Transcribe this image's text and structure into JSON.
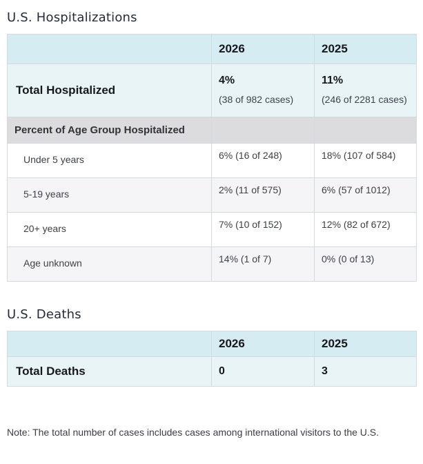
{
  "hospitalizations": {
    "title": "U.S. Hospitalizations",
    "columns": [
      "2026",
      "2025"
    ],
    "total": {
      "label": "Total Hospitalized",
      "y2026": {
        "percent": "4%",
        "detail": "(38 of 982 cases)"
      },
      "y2025": {
        "percent": "11%",
        "detail": "(246 of 2281 cases)"
      }
    },
    "section_label": "Percent of Age Group Hospitalized",
    "age_rows": [
      {
        "label": "Under 5 years",
        "y2026": "6% (16 of 248)",
        "y2025": "18% (107 of 584)"
      },
      {
        "label": "5-19 years",
        "y2026": "2% (11 of 575)",
        "y2025": "6% (57 of 1012)"
      },
      {
        "label": "20+ years",
        "y2026": "7% (10 of 152)",
        "y2025": "12% (82 of 672)"
      },
      {
        "label": "Age unknown",
        "y2026": "14% (1 of 7)",
        "y2025": "0% (0 of 13)"
      }
    ]
  },
  "deaths": {
    "title": "U.S. Deaths",
    "columns": [
      "2026",
      "2025"
    ],
    "total": {
      "label": "Total Deaths",
      "y2026": "0",
      "y2025": "3"
    }
  },
  "note": "Note: The total number of cases includes cases among international visitors to the U.S.",
  "colors": {
    "header_row_bg": "#d6ecf3",
    "total_row_bg": "#e9f4f7",
    "section_row_bg": "#dcdcde",
    "alt_row_bg": "#f5f5f7",
    "border": "#d4d9db"
  }
}
